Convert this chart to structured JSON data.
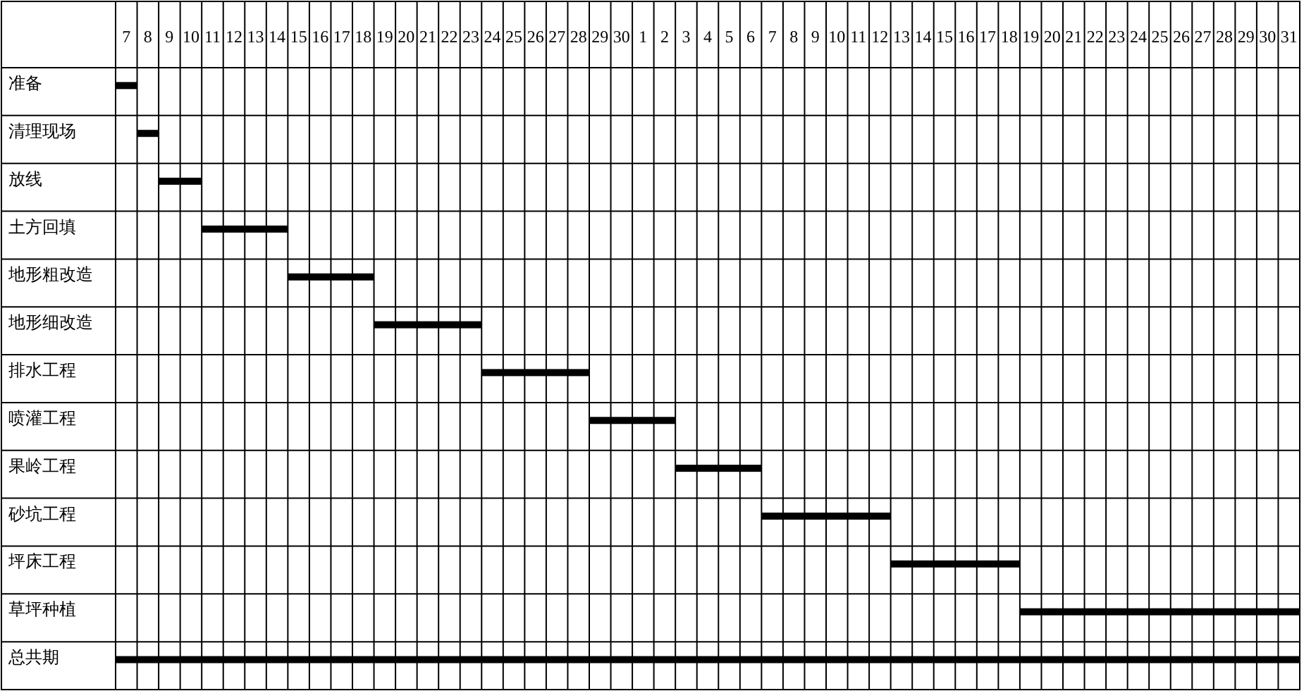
{
  "chart_data": {
    "type": "bar",
    "orientation": "horizontal",
    "categories": [
      "准备",
      "清理现场",
      "放线",
      "土方回填",
      "地形粗改造",
      "地形细改造",
      "排水工程",
      "喷灌工程",
      "果岭工程",
      "砂坑工程",
      "坪床工程",
      "草坪种植",
      "总共期"
    ],
    "base": [
      6.5,
      7.5,
      8.5,
      10.5,
      14.5,
      18.5,
      23.5,
      28.5,
      32.5,
      36.5,
      42.5,
      48.5,
      6.5
    ],
    "values": [
      1,
      1,
      2,
      4,
      4,
      5,
      5,
      4,
      4,
      6,
      6,
      13,
      55
    ],
    "color": "#000000",
    "grid": true,
    "xlim": [
      6.5,
      61.5
    ],
    "xticks": [
      7,
      8,
      9,
      10,
      11,
      12,
      13,
      14,
      15,
      16,
      17,
      18,
      19,
      20,
      21,
      22,
      23,
      24,
      25,
      26,
      27,
      28,
      29,
      30
    ],
    "x2lim": [
      -23.5,
      31.5
    ],
    "x2ticks": [
      1,
      2,
      3,
      4,
      5,
      6,
      7,
      8,
      9,
      10,
      11,
      12,
      13,
      14,
      15,
      16,
      17,
      18,
      19,
      20,
      21,
      22,
      23,
      24,
      25,
      26,
      27,
      28,
      29,
      30,
      31
    ]
  }
}
